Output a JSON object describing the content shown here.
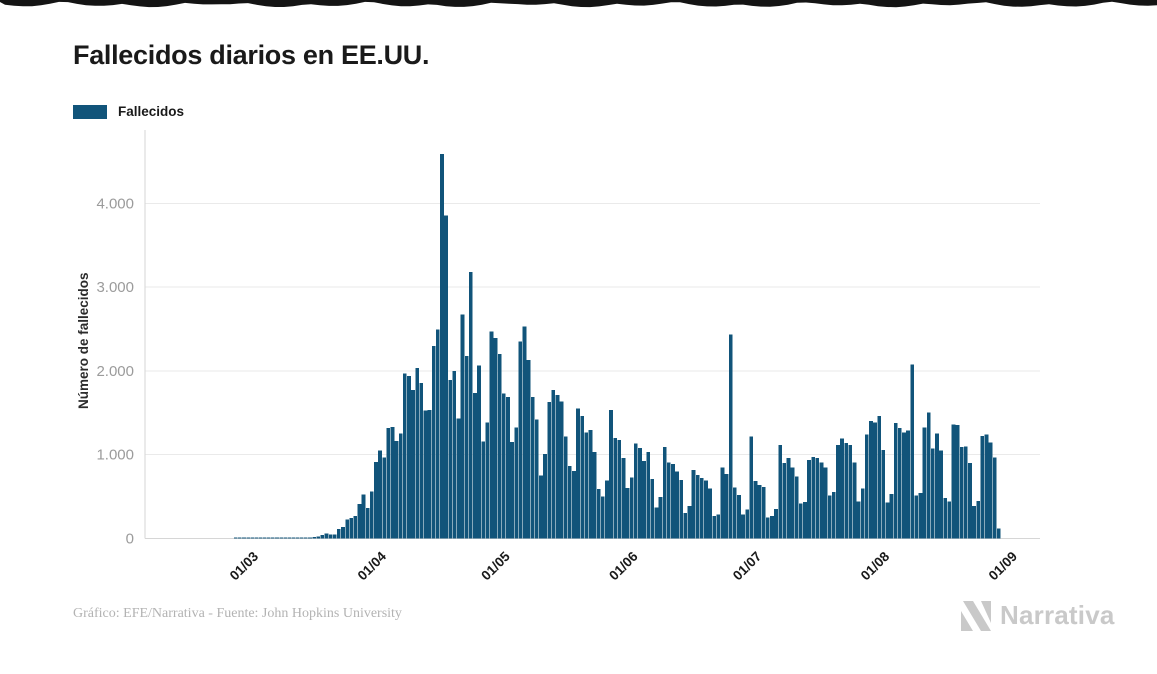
{
  "header": {
    "title": "Fallecidos diarios en EE.UU."
  },
  "legend": {
    "label": "Fallecidos",
    "color": "#11547a"
  },
  "footer": {
    "credit": "Gráfico: EFE/Narrativa - Fuente: John Hopkins University",
    "brand": "Narrativa"
  },
  "colors": {
    "bar": "#11547a",
    "grid": "#eaeaea",
    "axis": "#d6d6d6",
    "y_tick_text": "#9b9b9b",
    "x_tick_text": "#1a1a1a",
    "axis_title_text": "#2b2b2b",
    "title_text": "#1a1a1a",
    "footer_text": "#b3b3b3",
    "brand_gray": "#c9c9c9",
    "artifact": "#141414"
  },
  "chart_data": {
    "type": "bar",
    "title": "Fallecidos diarios en EE.UU.",
    "series_name": "Fallecidos",
    "xlabel": "",
    "ylabel": "Número de fallecidos",
    "ylim": [
      0,
      4720
    ],
    "grid": true,
    "legend_position": "top-left",
    "y_tick_values": [
      0,
      1000,
      2000,
      3000,
      4000
    ],
    "y_tick_labels": [
      "0",
      "1.000",
      "2.000",
      "3.000",
      "4.000"
    ],
    "x_tick_dates": [
      "2020-03-01",
      "2020-04-01",
      "2020-05-01",
      "2020-06-01",
      "2020-07-01",
      "2020-08-01",
      "2020-09-01"
    ],
    "x_tick_labels": [
      "01/03",
      "01/04",
      "01/05",
      "01/06",
      "01/07",
      "01/08",
      "01/09"
    ],
    "x_domain": [
      "2020-02-06",
      "2020-09-10"
    ],
    "start_date": "2020-02-22",
    "values": [
      0,
      0,
      0,
      0,
      0,
      0,
      1,
      1,
      1,
      1,
      1,
      5,
      2,
      4,
      1,
      3,
      4,
      3,
      4,
      4,
      8,
      3,
      8,
      8,
      11,
      18,
      23,
      41,
      57,
      49,
      46,
      111,
      140,
      225,
      247,
      268,
      411,
      525,
      363,
      558,
      912,
      1049,
      968,
      1321,
      1331,
      1165,
      1255,
      1970,
      1940,
      1772,
      2035,
      1857,
      1528,
      1535,
      2299,
      2494,
      4591,
      3857,
      1891,
      1997,
      1433,
      2674,
      2176,
      3179,
      1737,
      2065,
      1157,
      1384,
      2470,
      2390,
      2201,
      1733,
      1691,
      1154,
      1324,
      2350,
      2528,
      2129,
      1687,
      1422,
      750,
      1008,
      1630,
      1772,
      1715,
      1635,
      1218,
      865,
      808,
      1552,
      1461,
      1263,
      1293,
      1035,
      592,
      500,
      693,
      1534,
      1199,
      1175,
      960,
      605,
      730,
      1134,
      1083,
      925,
      1035,
      709,
      373,
      497,
      1093,
      906,
      891,
      802,
      701,
      302,
      389,
      818,
      760,
      724,
      691,
      594,
      267,
      288,
      848,
      770,
      2437,
      611,
      517,
      286,
      347,
      1220,
      684,
      636,
      614,
      252,
      266,
      351,
      1114,
      900,
      959,
      849,
      740,
      416,
      433,
      935,
      975,
      963,
      908,
      845,
      516,
      557,
      1116,
      1195,
      1140,
      1113,
      905,
      441,
      594,
      1244,
      1403,
      1385,
      1461,
      1058,
      427,
      532,
      1380,
      1321,
      1263,
      1290,
      2075,
      513,
      541,
      1326,
      1504,
      1076,
      1255,
      1048,
      483,
      439,
      1358,
      1356,
      1090,
      1096,
      900,
      390,
      448,
      1222,
      1240,
      1148,
      968,
      120
    ]
  }
}
